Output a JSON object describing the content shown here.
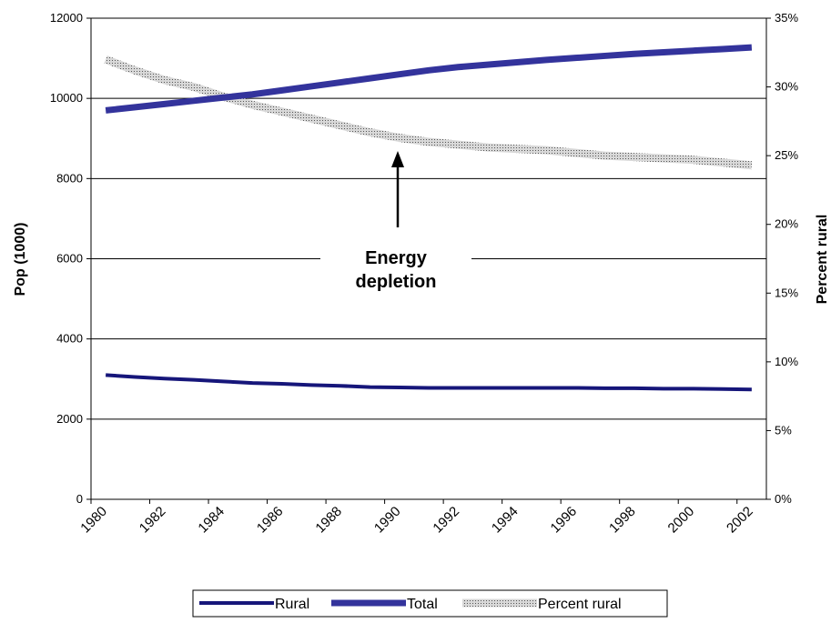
{
  "chart_data": {
    "type": "line",
    "annotation": "Energy depletion",
    "y_label": "Pop (1000)",
    "y2_label": "Percent rural",
    "categories": [
      "1980",
      null,
      "1982",
      null,
      "1984",
      null,
      "1986",
      null,
      "1988",
      null,
      "1990",
      null,
      "1992",
      null,
      "1994",
      null,
      "1996",
      null,
      "1998",
      null,
      "2000",
      null,
      "2002"
    ],
    "series": [
      {
        "name": "Rural",
        "color": "#16167a",
        "width": 4,
        "values": [
          3100,
          3050,
          3010,
          2980,
          2940,
          2900,
          2880,
          2850,
          2830,
          2800,
          2790,
          2780,
          2780,
          2780,
          2780,
          2780,
          2780,
          2770,
          2770,
          2760,
          2760,
          2750,
          2740
        ]
      },
      {
        "name": "Total",
        "color": "#33339c",
        "width": 7,
        "values": [
          9700,
          9780,
          9860,
          9940,
          10020,
          10100,
          10200,
          10300,
          10400,
          10500,
          10600,
          10700,
          10780,
          10840,
          10900,
          10960,
          11010,
          11060,
          11110,
          11150,
          11190,
          11230,
          11270
        ]
      },
      {
        "name": "Percent rural",
        "color": "#b0b0b0",
        "width": 9,
        "pattern": true,
        "axis": "y2",
        "values": [
          32.0,
          31.2,
          30.5,
          30.0,
          29.3,
          28.7,
          28.2,
          27.7,
          27.2,
          26.7,
          26.3,
          26.0,
          25.8,
          25.6,
          25.5,
          25.4,
          25.2,
          25.0,
          24.9,
          24.8,
          24.7,
          24.5,
          24.3
        ]
      }
    ],
    "ylim": [
      0,
      12000
    ],
    "yticks": [
      0,
      2000,
      4000,
      6000,
      8000,
      10000,
      12000
    ],
    "y2lim": [
      0,
      35
    ],
    "y2ticks": [
      {
        "value": 0,
        "label": "0%"
      },
      {
        "value": 5,
        "label": "5%"
      },
      {
        "value": 10,
        "label": "10%"
      },
      {
        "value": 15,
        "label": "15%"
      },
      {
        "value": 20,
        "label": "20%"
      },
      {
        "value": 25,
        "label": "25%"
      },
      {
        "value": 30,
        "label": "30%"
      },
      {
        "value": 35,
        "label": "35%"
      }
    ],
    "grid": true,
    "legend": "bottom"
  }
}
